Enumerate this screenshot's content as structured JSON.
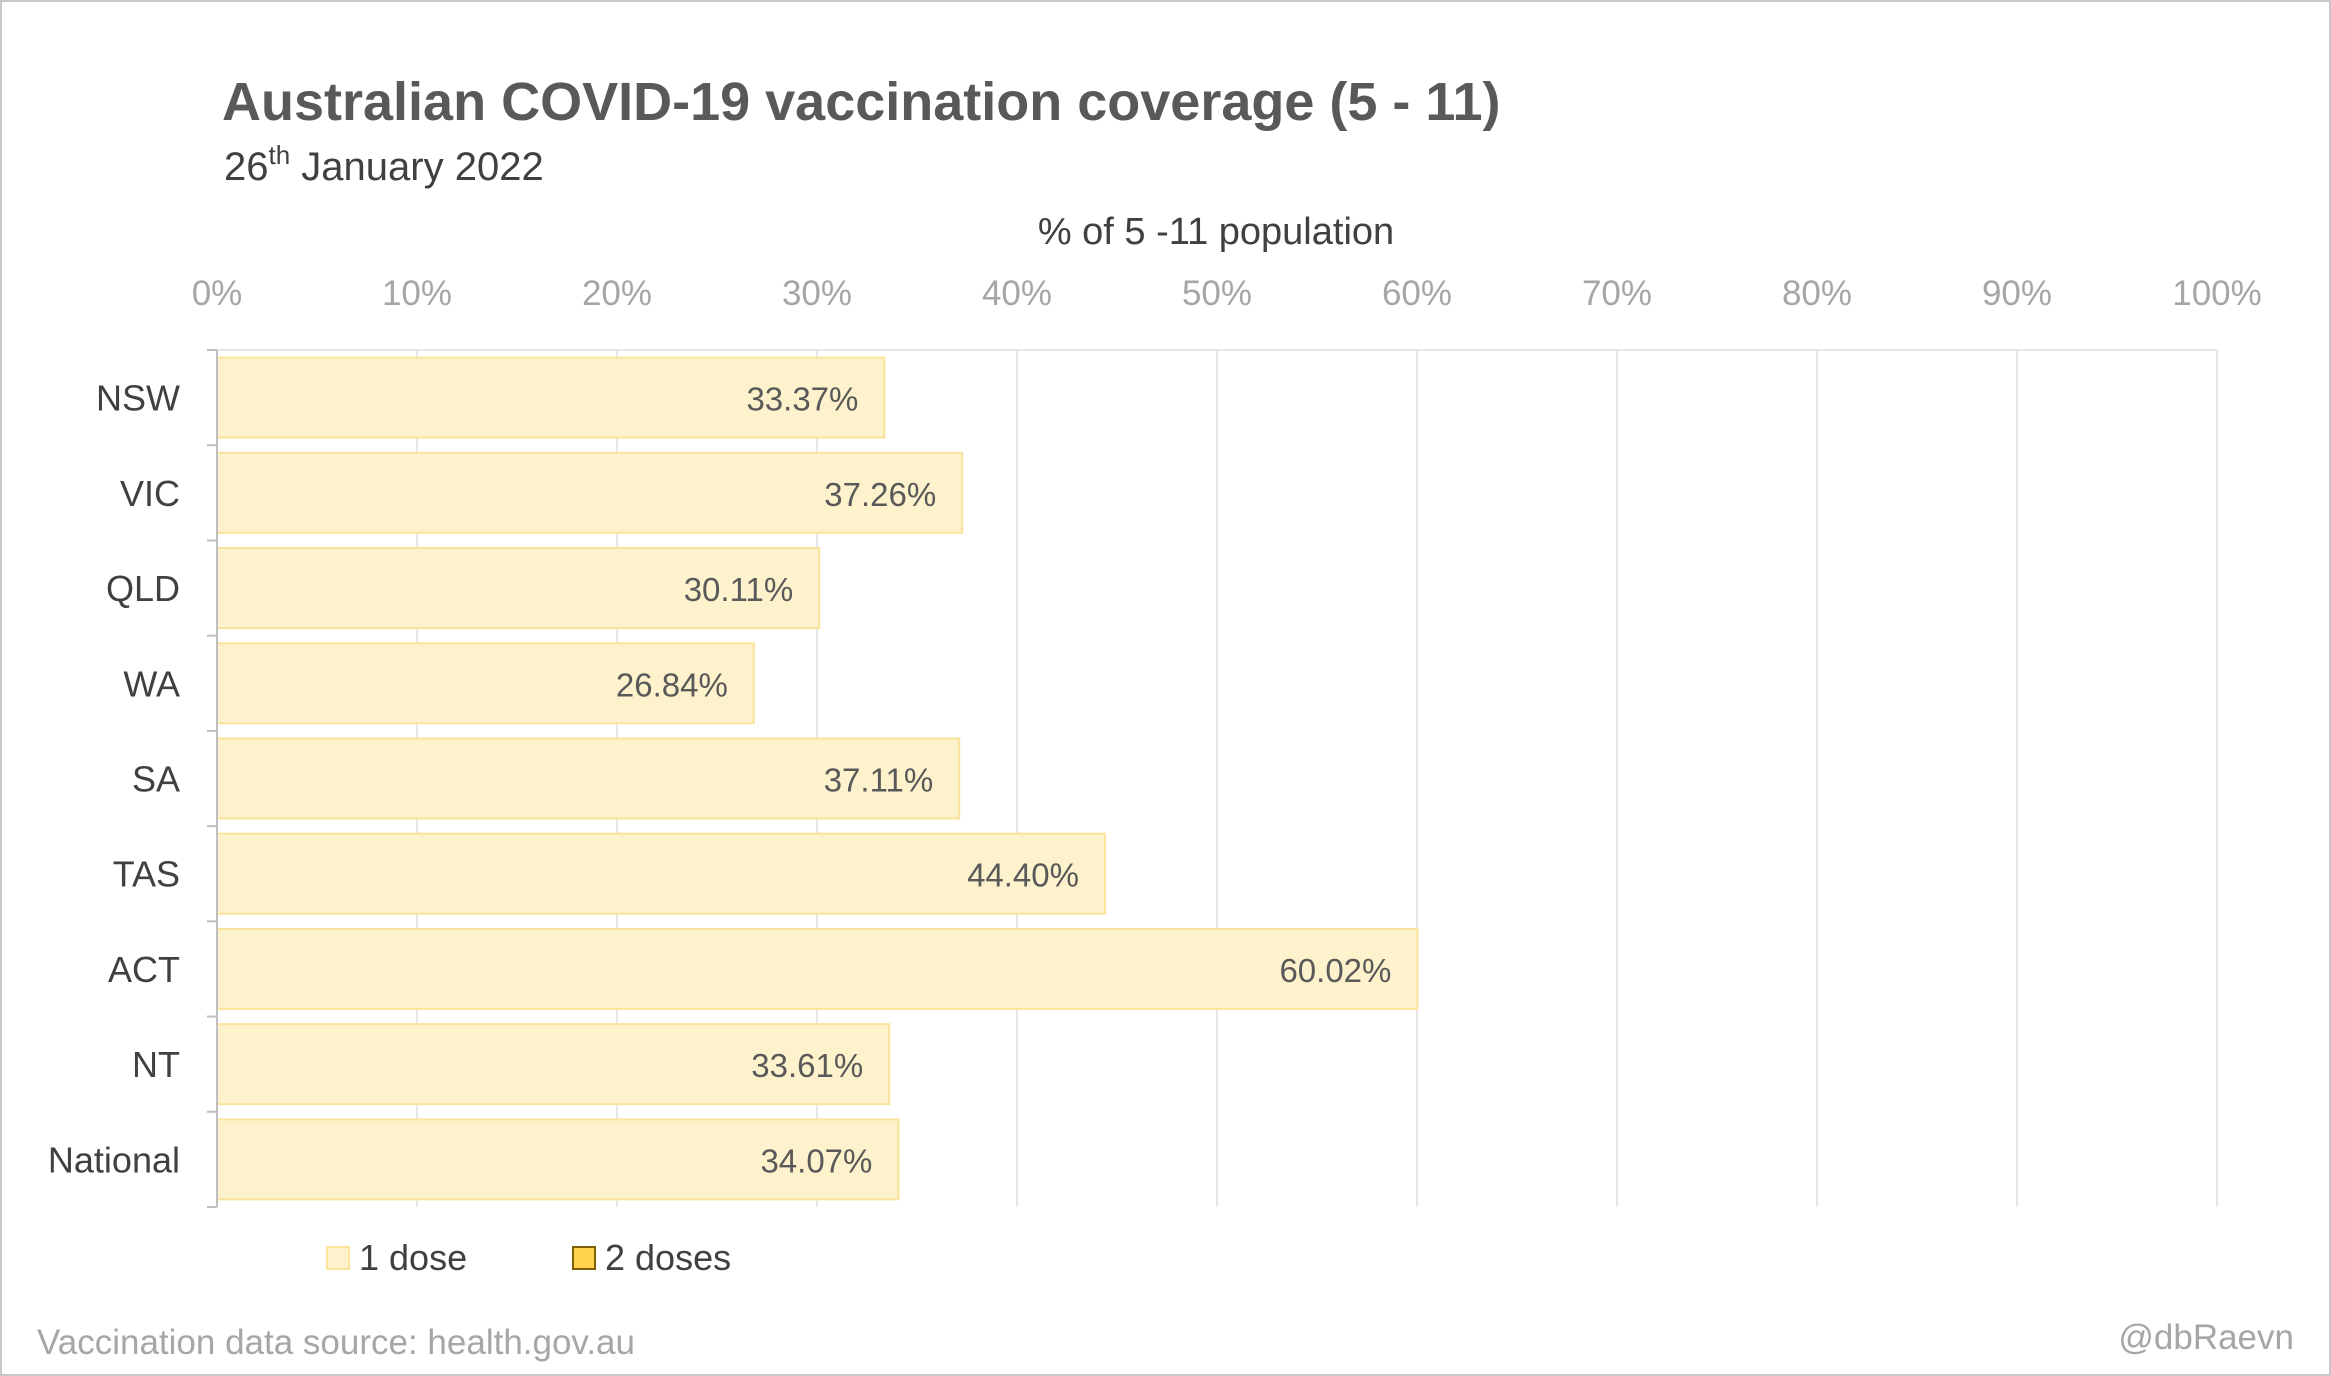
{
  "chart_data": {
    "type": "bar",
    "orientation": "horizontal",
    "title": "Australian COVID-19 vaccination coverage (5 - 11)",
    "subtitle": {
      "day": "26",
      "ordinal_suffix": "th",
      "rest": " January 2022"
    },
    "xlabel": "% of 5 -11 population",
    "ylabel": "",
    "xlim": [
      0,
      100
    ],
    "x_ticks": [
      "0%",
      "10%",
      "20%",
      "30%",
      "40%",
      "50%",
      "60%",
      "70%",
      "80%",
      "90%",
      "100%"
    ],
    "categories": [
      "NSW",
      "VIC",
      "QLD",
      "WA",
      "SA",
      "TAS",
      "ACT",
      "NT",
      "National"
    ],
    "series": [
      {
        "name": "1 dose",
        "color": "#fef2cc",
        "stroke": "#fbe39b",
        "values": [
          33.37,
          37.26,
          30.11,
          26.84,
          37.11,
          44.4,
          60.02,
          33.61,
          34.07
        ],
        "labels": [
          "33.37%",
          "37.26%",
          "30.11%",
          "26.84%",
          "37.11%",
          "44.40%",
          "60.02%",
          "33.61%",
          "34.07%"
        ]
      },
      {
        "name": "2 doses",
        "color": "#ffd24d",
        "stroke": "#7f6000",
        "values": [
          0,
          0,
          0,
          0,
          0,
          0,
          0,
          0,
          0
        ]
      }
    ],
    "grid": true,
    "legend_position": "bottom-left",
    "source_note": "Vaccination data source: health.gov.au",
    "credit": "@dbRaevn"
  }
}
